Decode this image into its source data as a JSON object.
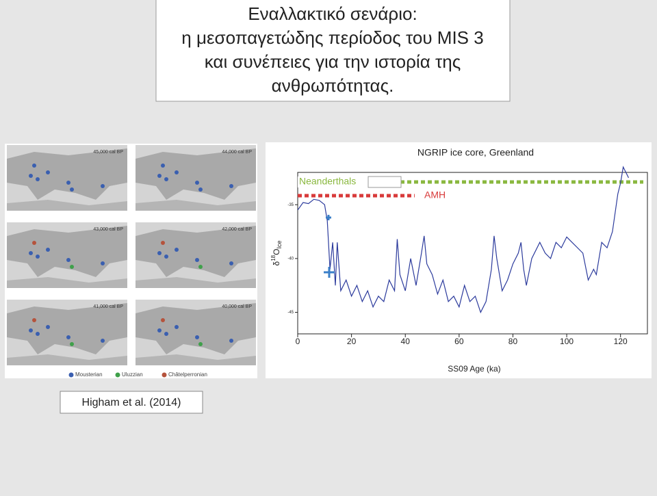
{
  "title": [
    "Εναλλακτικό σενάριο:",
    "η μεσοπαγετώδης περίοδος του MIS 3",
    "και συνέπειες για την ιστορία της",
    "ανθρωπότητας."
  ],
  "maps": {
    "panels": [
      "45,000 cal BP",
      "44,000 cal BP",
      "43,000 cal BP",
      "42,000 cal BP",
      "41,000 cal BP",
      "40,000 cal BP"
    ],
    "legend": [
      {
        "name": "Mousterian",
        "color": "#3a5fb0"
      },
      {
        "name": "Uluzzian",
        "color": "#3fa04a"
      },
      {
        "name": "Châtelperronian",
        "color": "#b5533c"
      }
    ]
  },
  "citation": "Higham et al. (2014)",
  "chart_data": {
    "type": "line",
    "title": "NGRIP ice core, Greenland",
    "x_label": "SS09 Age (ka)",
    "y_label": {
      "symbol": "δ",
      "sup": "18",
      "base": "O",
      "sub": "Ice"
    },
    "x": [
      0,
      2,
      4,
      6,
      8,
      10,
      11,
      12,
      13,
      14,
      14.7,
      16,
      18,
      20,
      22,
      24,
      26,
      28,
      30,
      32,
      34,
      36,
      37,
      38,
      40,
      42,
      44,
      46,
      47,
      48,
      50,
      52,
      54,
      56,
      58,
      60,
      62,
      64,
      66,
      68,
      70,
      72,
      73,
      74,
      76,
      78,
      80,
      82,
      83,
      84,
      85,
      87,
      90,
      92,
      94,
      96,
      98,
      100,
      102,
      104,
      106,
      108,
      110,
      111,
      113,
      115,
      117,
      119,
      120,
      121,
      122,
      123
    ],
    "series": [
      {
        "name": "NGRIP",
        "color": "#2b3a9c",
        "values": [
          -35.5,
          -34.8,
          -34.9,
          -34.5,
          -34.6,
          -35.0,
          -36.5,
          -41.0,
          -38.5,
          -42.5,
          -38.5,
          -43.0,
          -42.0,
          -43.5,
          -42.5,
          -44.0,
          -43.0,
          -44.5,
          -43.5,
          -44.0,
          -42.0,
          -43.0,
          -38.2,
          -41.5,
          -43.0,
          -40.0,
          -42.5,
          -39.5,
          -37.9,
          -40.5,
          -41.5,
          -43.3,
          -42.0,
          -44.0,
          -43.5,
          -44.5,
          -42.5,
          -44.0,
          -43.5,
          -45.0,
          -44.0,
          -41.0,
          -37.9,
          -40.0,
          -43.0,
          -42.0,
          -40.5,
          -39.5,
          -38.5,
          -41.0,
          -42.5,
          -40.0,
          -38.5,
          -39.5,
          -40.0,
          -38.5,
          -39.0,
          -38.0,
          -38.5,
          -39.0,
          -39.5,
          -42.0,
          -41.0,
          -41.5,
          -38.5,
          -39.0,
          -37.5,
          -34.0,
          -33.0,
          -31.5,
          -32.0,
          -32.5
        ]
      }
    ],
    "periods": [
      {
        "name": "Neanderthals",
        "color": "#8ab83f",
        "range": [
          0,
          130
        ]
      },
      {
        "name": "AMH",
        "color": "#d83a3a",
        "range": [
          0,
          45
        ]
      }
    ],
    "xlim": [
      0,
      130
    ],
    "ylim": [
      -47,
      -32
    ],
    "xticks": [
      0,
      20,
      40,
      60,
      80,
      100,
      120
    ],
    "yticks": [
      -35,
      -40,
      -45
    ]
  }
}
